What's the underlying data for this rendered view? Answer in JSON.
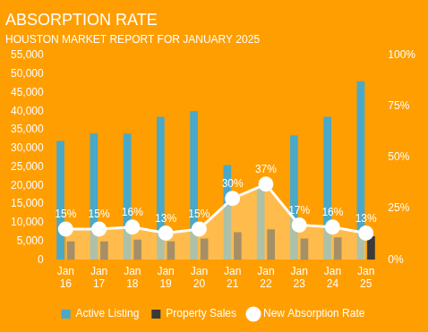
{
  "chart_data": {
    "type": "bar",
    "title": "ABSORPTION RATE",
    "subtitle": "HOUSTON MARKET REPORT FOR JANUARY 2025",
    "categories": [
      "Jan 16",
      "Jan 17",
      "Jan 18",
      "Jan 19",
      "Jan 20",
      "Jan 21",
      "Jan 22",
      "Jan 23",
      "Jan 24",
      "Jan 25"
    ],
    "series": [
      {
        "name": "Active Listing",
        "type": "bar",
        "color": "#4aa8c9",
        "values": [
          32000,
          34000,
          34000,
          38500,
          40000,
          25500,
          20000,
          33500,
          38500,
          48000
        ]
      },
      {
        "name": "Property Sales",
        "type": "bar",
        "color": "#3a3a3a",
        "values": [
          4900,
          4900,
          5400,
          4900,
          5700,
          7400,
          8200,
          5700,
          6000,
          6300
        ]
      },
      {
        "name": "New Absorption Rate",
        "type": "line",
        "axis": "y2",
        "color": "#ffffff",
        "marker": "circle",
        "values": [
          15,
          15,
          16,
          13,
          15,
          30,
          37,
          17,
          16,
          13
        ],
        "value_labels": [
          "15%",
          "15%",
          "16%",
          "13%",
          "15%",
          "30%",
          "37%",
          "17%",
          "16%",
          "13%"
        ]
      }
    ],
    "ylim": [
      0,
      55000
    ],
    "yticks": [
      0,
      {
        "value": 5000,
        "label": "5,000"
      },
      {
        "value": 10000,
        "label": "10,000"
      },
      {
        "value": 15000,
        "label": "15,000"
      },
      {
        "value": 20000,
        "label": "20,000"
      },
      {
        "value": 25000,
        "label": "25,000"
      },
      {
        "value": 30000,
        "label": "30,000"
      },
      {
        "value": 35000,
        "label": "35,000"
      },
      {
        "value": 40000,
        "label": "40,000"
      },
      {
        "value": 45000,
        "label": "45,000"
      },
      {
        "value": 50000,
        "label": "50,000"
      },
      {
        "value": 55000,
        "label": "55,000"
      }
    ],
    "y2lim": [
      0,
      100
    ],
    "y2ticks": [
      {
        "value": 0,
        "label": "0%"
      },
      {
        "value": 25,
        "label": "25%"
      },
      {
        "value": 50,
        "label": "50%"
      },
      {
        "value": 75,
        "label": "75%"
      },
      {
        "value": 100,
        "label": "100%"
      }
    ],
    "grid": false,
    "legend": "bottom",
    "data_labels": true
  }
}
